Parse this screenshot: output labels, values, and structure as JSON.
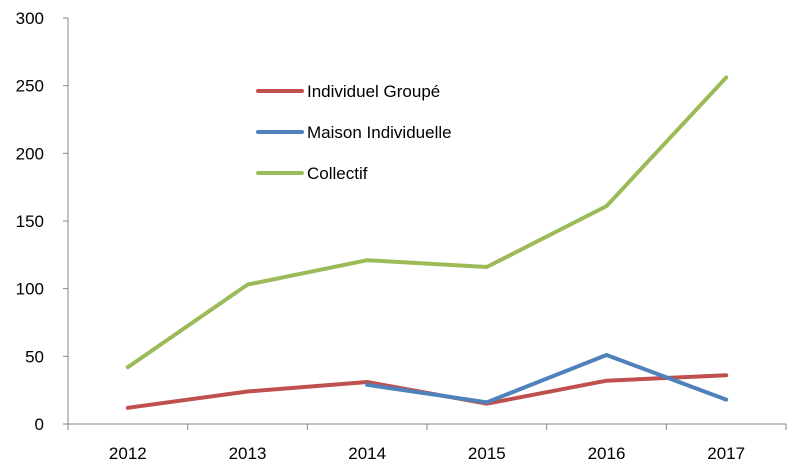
{
  "chart_data": {
    "type": "line",
    "title": "",
    "xlabel": "",
    "ylabel": "",
    "x": [
      "2012",
      "2013",
      "2014",
      "2015",
      "2016",
      "2017"
    ],
    "ylim": [
      0,
      300
    ],
    "yticks": [
      0,
      50,
      100,
      150,
      200,
      250,
      300
    ],
    "grid": false,
    "legend_position": "top-left inside",
    "series": [
      {
        "name": "Individuel Groupé",
        "color": "#c0504d",
        "values": [
          12,
          24,
          31,
          15,
          32,
          36
        ]
      },
      {
        "name": "Maison Individuelle",
        "color": "#4f81bd",
        "values": [
          null,
          null,
          29,
          16,
          51,
          18
        ]
      },
      {
        "name": "Collectif",
        "color": "#9bbb59",
        "values": [
          42,
          103,
          121,
          116,
          161,
          256
        ]
      }
    ]
  }
}
